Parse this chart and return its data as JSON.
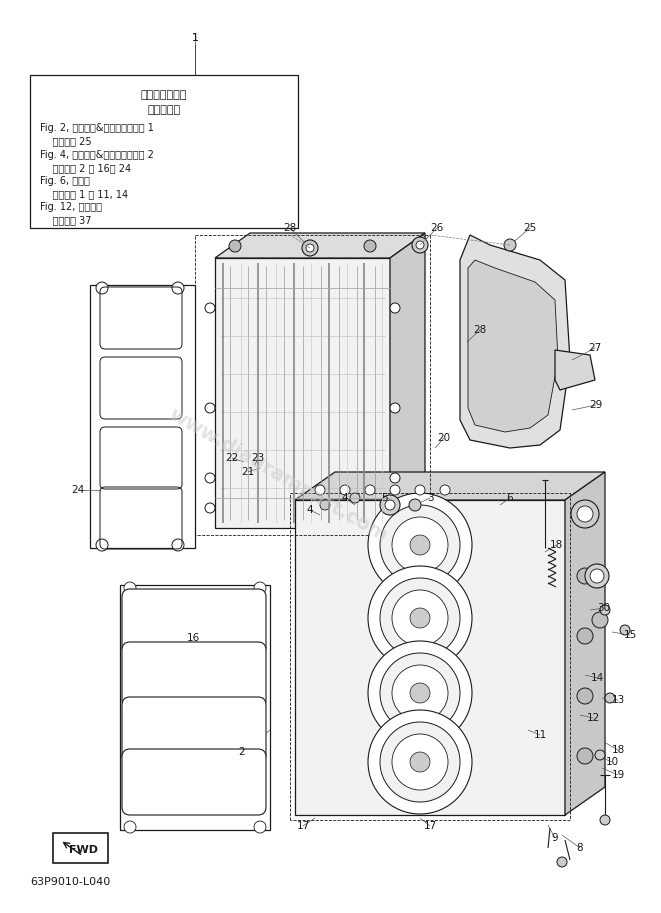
{
  "bg_color": "#ffffff",
  "line_color": "#1a1a1a",
  "gray_fill": "#e8e8e8",
  "light_fill": "#f2f2f2",
  "watermark": "www.diagrampart.com",
  "watermark_color": "#c8c8c8",
  "bottom_label": "63P9010-L040",
  "fwd_label": "FWD",
  "title_lines": [
    "シリンダヘッド",
    "アセンブリ",
    "Fig. 2, シリンダ&クランクケース 1",
    "    見出番号 25",
    "Fig. 4, シリンダ&クランクケース 2",
    "    見出番号 2 － 16， 24",
    "Fig. 6, バルブ",
    "    見出番号 1 ～ 11, 14",
    "Fig. 12, フェエル",
    "    見出番号 37"
  ]
}
